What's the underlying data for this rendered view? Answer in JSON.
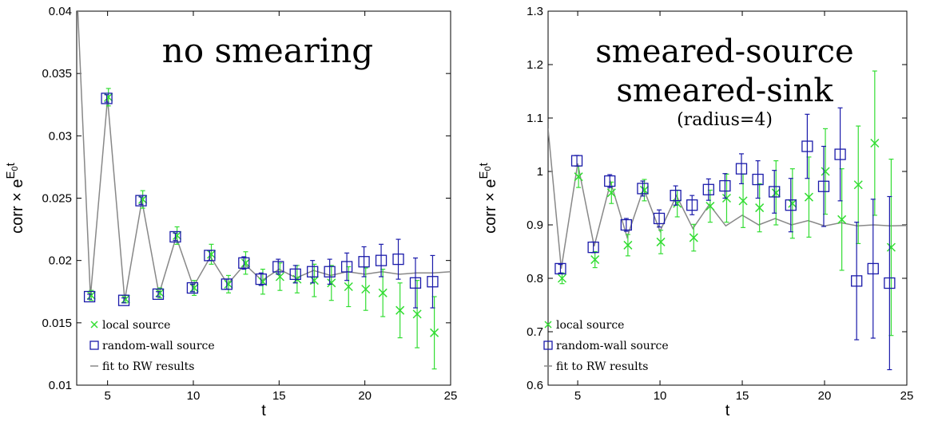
{
  "chart_data": [
    {
      "type": "scatter",
      "title_lines": [
        "no smearing"
      ],
      "subtitle": "",
      "xlabel": "t",
      "ylabel": "corr × e",
      "ylabel_sup": "E",
      "ylabel_sub": "0",
      "ylabel_sup2": "t",
      "xlim": [
        3.2,
        25
      ],
      "ylim": [
        0.01,
        0.04
      ],
      "xticks": [
        5,
        10,
        15,
        20,
        25
      ],
      "yticks": [
        0.01,
        0.015,
        0.02,
        0.025,
        0.03,
        0.035,
        0.04
      ],
      "ytick_labels": [
        "0.01",
        "0.015",
        "0.02",
        "0.025",
        "0.03",
        "0.035",
        "0.04"
      ],
      "legend_placement": "bottom-left",
      "colors": {
        "local": "#33dd33",
        "rw": "#1a1aaa",
        "fit": "#888888"
      },
      "series": [
        {
          "name": "local source",
          "marker": "x",
          "x": [
            4,
            5,
            6,
            7,
            8,
            9,
            10,
            11,
            12,
            13,
            14,
            15,
            16,
            17,
            18,
            19,
            20,
            21,
            22,
            23,
            24
          ],
          "y": [
            0.0172,
            0.0331,
            0.0169,
            0.0249,
            0.0174,
            0.022,
            0.0178,
            0.0205,
            0.0181,
            0.0198,
            0.0183,
            0.0187,
            0.0185,
            0.0184,
            0.0182,
            0.0179,
            0.0177,
            0.0174,
            0.016,
            0.0157,
            0.0142
          ],
          "err": [
            0.0004,
            0.0007,
            0.0003,
            0.0007,
            0.0004,
            0.0007,
            0.0006,
            0.0008,
            0.0007,
            0.0009,
            0.001,
            0.0011,
            0.0011,
            0.0013,
            0.0014,
            0.0016,
            0.0017,
            0.0019,
            0.0022,
            0.0027,
            0.0029
          ]
        },
        {
          "name": "random-wall source",
          "marker": "square",
          "x": [
            4,
            5,
            6,
            7,
            8,
            9,
            10,
            11,
            12,
            13,
            14,
            15,
            16,
            17,
            18,
            19,
            20,
            21,
            22,
            23,
            24
          ],
          "y": [
            0.0171,
            0.033,
            0.0168,
            0.0248,
            0.0173,
            0.0219,
            0.0178,
            0.0204,
            0.0181,
            0.0198,
            0.0185,
            0.0195,
            0.0189,
            0.0191,
            0.0191,
            0.0195,
            0.0199,
            0.02,
            0.0201,
            0.0182,
            0.0183
          ],
          "err": [
            0.0002,
            0.0003,
            0.0002,
            0.0003,
            0.0002,
            0.0003,
            0.0003,
            0.0004,
            0.0004,
            0.0005,
            0.0005,
            0.0006,
            0.0007,
            0.0009,
            0.001,
            0.0011,
            0.0012,
            0.0013,
            0.0016,
            0.002,
            0.0021
          ]
        },
        {
          "name": "fit to RW results",
          "marker": "line",
          "x": [
            3.2,
            4,
            5,
            6,
            7,
            8,
            9,
            10,
            11,
            12,
            13,
            14,
            15,
            16,
            17,
            18,
            19,
            20,
            21,
            22,
            23,
            24,
            25
          ],
          "y": [
            0.042,
            0.0171,
            0.033,
            0.0168,
            0.0248,
            0.0173,
            0.0219,
            0.0179,
            0.0203,
            0.0181,
            0.0197,
            0.0184,
            0.0193,
            0.0186,
            0.0192,
            0.0188,
            0.0191,
            0.0189,
            0.0191,
            0.0189,
            0.019,
            0.019,
            0.0191
          ]
        }
      ]
    },
    {
      "type": "scatter",
      "title_lines": [
        "smeared-source",
        "smeared-sink"
      ],
      "subtitle": "(radius=4)",
      "xlabel": "t",
      "ylabel": "corr × e",
      "ylabel_sup": "E",
      "ylabel_sub": "0",
      "ylabel_sup2": "t",
      "xlim": [
        3.2,
        25
      ],
      "ylim": [
        0.6,
        1.3
      ],
      "xticks": [
        5,
        10,
        15,
        20,
        25
      ],
      "yticks": [
        0.6,
        0.7,
        0.8,
        0.9,
        1.0,
        1.1,
        1.2,
        1.3
      ],
      "ytick_labels": [
        "0.6",
        "0.7",
        "0.8",
        "0.9",
        "1",
        "1.1",
        "1.2",
        "1.3"
      ],
      "legend_placement": "bottom-left",
      "colors": {
        "local": "#33dd33",
        "rw": "#1a1aaa",
        "fit": "#888888"
      },
      "series": [
        {
          "name": "local source",
          "marker": "x",
          "x": [
            4,
            5,
            6,
            7,
            8,
            9,
            10,
            11,
            12,
            13,
            14,
            15,
            16,
            17,
            18,
            19,
            20,
            21,
            22,
            23,
            24
          ],
          "y": [
            0.8,
            0.99,
            0.835,
            0.96,
            0.862,
            0.965,
            0.868,
            0.94,
            0.876,
            0.935,
            0.95,
            0.945,
            0.932,
            0.96,
            0.94,
            0.952,
            1.0,
            0.91,
            0.975,
            1.053,
            0.858
          ],
          "err": [
            0.01,
            0.02,
            0.015,
            0.02,
            0.02,
            0.02,
            0.022,
            0.025,
            0.025,
            0.03,
            0.045,
            0.05,
            0.045,
            0.06,
            0.065,
            0.075,
            0.08,
            0.095,
            0.11,
            0.135,
            0.165
          ]
        },
        {
          "name": "random-wall source",
          "marker": "square",
          "x": [
            4,
            5,
            6,
            7,
            8,
            9,
            10,
            11,
            12,
            13,
            14,
            15,
            16,
            17,
            18,
            19,
            20,
            21,
            22,
            23,
            24
          ],
          "y": [
            0.818,
            1.02,
            0.858,
            0.982,
            0.9,
            0.968,
            0.912,
            0.955,
            0.937,
            0.966,
            0.973,
            1.005,
            0.985,
            0.962,
            0.937,
            1.047,
            0.972,
            1.032,
            0.795,
            0.818,
            0.791
          ],
          "err": [
            0.008,
            0.01,
            0.01,
            0.012,
            0.012,
            0.014,
            0.016,
            0.018,
            0.018,
            0.02,
            0.023,
            0.028,
            0.035,
            0.04,
            0.05,
            0.06,
            0.075,
            0.087,
            0.11,
            0.13,
            0.162
          ]
        },
        {
          "name": "fit to RW results",
          "marker": "line",
          "x": [
            3.2,
            4,
            5,
            6,
            7,
            8,
            9,
            10,
            11,
            12,
            13,
            14,
            15,
            16,
            17,
            18,
            19,
            20,
            21,
            22,
            23,
            24,
            25
          ],
          "y": [
            1.08,
            0.818,
            1.015,
            0.86,
            0.98,
            0.877,
            0.968,
            0.888,
            0.955,
            0.893,
            0.938,
            0.898,
            0.918,
            0.9,
            0.912,
            0.9,
            0.908,
            0.898,
            0.904,
            0.898,
            0.9,
            0.898,
            0.899
          ]
        }
      ]
    }
  ]
}
